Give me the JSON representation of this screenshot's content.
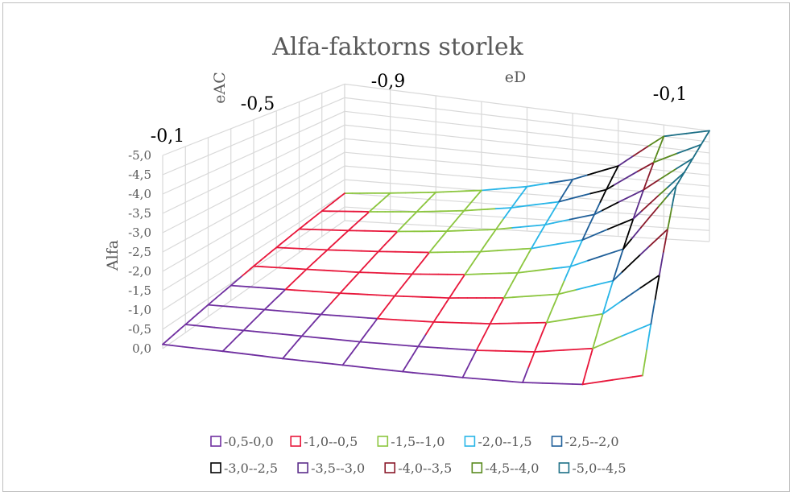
{
  "chart_data": {
    "type": "surface-wireframe",
    "title": "Alfa-faktorns storlek",
    "zlabel": "Alfa",
    "xlabel": "eD",
    "ylabel": "eAC",
    "x_ticks_visible": [
      "-0,9",
      "-0,1"
    ],
    "y_ticks_visible": [
      "-0,1",
      "-0,5"
    ],
    "z_ticks": [
      "-5,0",
      "-4,5",
      "-4,0",
      "-3,5",
      "-3,0",
      "-2,5",
      "-2,0",
      "-1,5",
      "-1,0",
      "-0,5",
      "0,0"
    ],
    "zlim": [
      -5.0,
      0.0
    ],
    "x_values": [
      -0.9,
      -0.8,
      -0.7,
      -0.6,
      -0.5,
      -0.4,
      -0.3,
      -0.2,
      -0.1
    ],
    "y_values": [
      -0.1,
      -0.2,
      -0.3,
      -0.4,
      -0.5,
      -0.6,
      -0.7,
      -0.8,
      -0.9
    ],
    "surface_note": "Alfa values in data units; formula approximates visible surface",
    "alfa_grid": [
      [
        -0.11,
        -0.13,
        -0.14,
        -0.17,
        -0.2,
        -0.25,
        -0.33,
        -0.5,
        -1.0
      ],
      [
        -0.22,
        -0.25,
        -0.29,
        -0.33,
        -0.4,
        -0.5,
        -0.67,
        -1.0,
        -2.0
      ],
      [
        -0.33,
        -0.38,
        -0.43,
        -0.5,
        -0.6,
        -0.75,
        -1.0,
        -1.5,
        -3.0
      ],
      [
        -0.44,
        -0.5,
        -0.57,
        -0.67,
        -0.8,
        -1.0,
        -1.33,
        -2.0,
        -4.0
      ],
      [
        -0.56,
        -0.63,
        -0.71,
        -0.83,
        -1.0,
        -1.25,
        -1.67,
        -2.5,
        -5.0
      ],
      [
        -0.67,
        -0.75,
        -0.86,
        -1.0,
        -1.2,
        -1.5,
        -2.0,
        -3.0,
        -5.0
      ],
      [
        -0.78,
        -0.88,
        -1.0,
        -1.17,
        -1.4,
        -1.75,
        -2.33,
        -3.5,
        -5.0
      ],
      [
        -0.89,
        -1.0,
        -1.14,
        -1.33,
        -1.6,
        -2.0,
        -2.67,
        -4.0,
        -5.0
      ],
      [
        -1.0,
        -1.13,
        -1.29,
        -1.5,
        -1.8,
        -2.25,
        -3.0,
        -4.5,
        -5.0
      ]
    ],
    "bands": [
      {
        "name": "-0,5-0,0",
        "color": "#7030a0"
      },
      {
        "name": "-1,0--0,5",
        "color": "#e8173b"
      },
      {
        "name": "-1,5--1,0",
        "color": "#8cc63f"
      },
      {
        "name": "-2,0--1,5",
        "color": "#29b6e8"
      },
      {
        "name": "-2,5--2,0",
        "color": "#1f5f99"
      },
      {
        "name": "-3,0--2,5",
        "color": "#000000"
      },
      {
        "name": "-3,5--3,0",
        "color": "#5b2d8a"
      },
      {
        "name": "-4,0--3,5",
        "color": "#8b1a2b"
      },
      {
        "name": "-4,5--4,0",
        "color": "#5a8a1f"
      },
      {
        "name": "-5,0--4,5",
        "color": "#1c6f86"
      }
    ],
    "legend_position": "bottom",
    "grid": true
  }
}
